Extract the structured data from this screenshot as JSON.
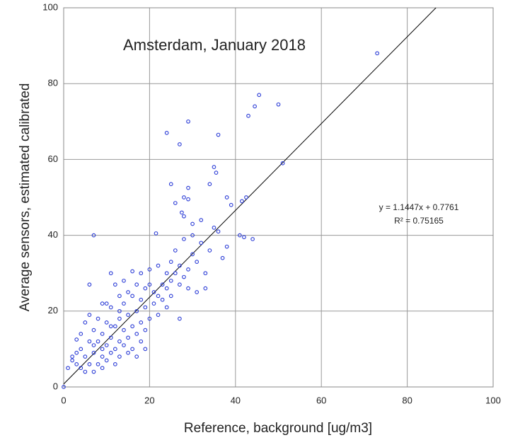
{
  "chart_data": {
    "type": "scatter",
    "title": "Amsterdam, January 2018",
    "x_label": "Reference, background [ug/m3]",
    "y_label": "Average sensors, estimated calibrated",
    "annotations": [
      "y = 1.1447x + 0.7761",
      "R² = 0.75165"
    ],
    "trendline": {
      "slope": 1.1447,
      "intercept": 0.7761,
      "color": "#000000"
    },
    "color": "#2a3bd6",
    "grid": true,
    "xlim": [
      0,
      100
    ],
    "ylim": [
      0,
      100
    ],
    "xticks": [
      0,
      20,
      40,
      60,
      80,
      100
    ],
    "yticks": [
      0,
      20,
      40,
      60,
      80,
      100
    ],
    "x": [
      73,
      45.5,
      43,
      50,
      44.5,
      29,
      24,
      27,
      36,
      51,
      35,
      35.5,
      25,
      29,
      34,
      28,
      29,
      38,
      42.5,
      41.5,
      39,
      26,
      27.5,
      28,
      30,
      32,
      21.5,
      7,
      41,
      42,
      44,
      35,
      36,
      28,
      30,
      32,
      34,
      37,
      38,
      26,
      25,
      27,
      29,
      31,
      22,
      24,
      20,
      18,
      16,
      11,
      12,
      14,
      17,
      19,
      21,
      23,
      25,
      27,
      29,
      31,
      33,
      15,
      13,
      10,
      9,
      11,
      13,
      15,
      17,
      19,
      21,
      23,
      25,
      20,
      22,
      18,
      16,
      14,
      12,
      10,
      8,
      6,
      5,
      7,
      9,
      11,
      13,
      15,
      17,
      19,
      8,
      10,
      12,
      14,
      16,
      18,
      6,
      4,
      3,
      2,
      5,
      7,
      9,
      11,
      13,
      6,
      8,
      10,
      12,
      4,
      3,
      5,
      7,
      9,
      2,
      1,
      0,
      3,
      4,
      30,
      26,
      24,
      22,
      28,
      33,
      14,
      16,
      20,
      18,
      13,
      11,
      7,
      9,
      15,
      17,
      19,
      6,
      27,
      24
    ],
    "values": [
      88,
      77,
      71.5,
      74.5,
      74,
      70,
      67,
      64,
      66.5,
      59,
      58,
      56.5,
      53.5,
      52.5,
      53.5,
      50,
      49.5,
      50,
      50,
      49,
      48,
      48.5,
      46,
      45,
      43,
      44,
      40.5,
      40,
      40,
      39.5,
      39,
      42,
      41,
      39,
      40,
      38,
      36,
      34,
      37,
      36,
      33,
      32,
      31,
      33,
      32,
      30,
      31,
      30,
      30.5,
      30,
      27,
      28,
      27,
      26,
      25,
      27,
      28,
      27,
      26,
      25,
      30,
      25,
      24,
      22,
      22,
      21,
      20,
      19,
      20,
      21,
      22,
      23,
      24,
      18,
      19,
      17,
      16,
      15,
      16,
      17,
      18,
      19,
      17,
      15,
      14,
      13,
      12,
      13,
      14,
      15,
      12,
      11,
      10,
      11,
      10,
      12,
      12,
      10,
      9,
      8,
      8,
      9,
      8,
      9,
      8,
      6,
      6,
      7,
      6,
      5,
      6,
      4,
      4,
      5,
      7,
      5,
      0,
      12.5,
      14,
      35,
      30,
      26,
      24,
      29,
      26,
      22,
      24,
      27,
      23,
      18,
      16,
      11,
      10,
      9,
      8,
      10,
      27,
      18,
      21
    ]
  }
}
